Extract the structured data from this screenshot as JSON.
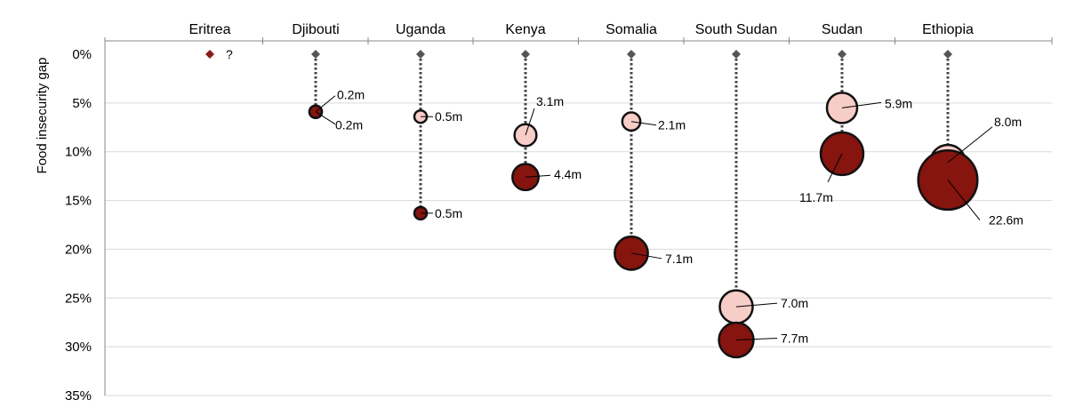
{
  "chart_data": {
    "type": "scatter",
    "ylabel": "Food insecurity gap",
    "ylim": [
      0,
      35
    ],
    "yticks": [
      "0%",
      "5%",
      "10%",
      "15%",
      "20%",
      "25%",
      "30%",
      "35%"
    ],
    "ytick_values": [
      0,
      5,
      10,
      15,
      20,
      25,
      30,
      35
    ],
    "grid": true,
    "colors": {
      "light_fill": "#f7cdc8",
      "dark_fill": "#86140f",
      "outline": "#111111",
      "diamond": "#555555",
      "eritrea_diamond": "#8b1a1a",
      "gridline": "#d9d9d9",
      "axis": "#888888"
    },
    "countries": [
      {
        "name": "Eritrea",
        "unknown": true,
        "unknown_label": "?",
        "points": []
      },
      {
        "name": "Djibouti",
        "points": [
          {
            "kind": "light",
            "gap": 5.9,
            "people": 0.2,
            "label": "0.2m"
          },
          {
            "kind": "dark",
            "gap": 5.9,
            "people": 0.2,
            "label": "0.2m"
          }
        ]
      },
      {
        "name": "Uganda",
        "points": [
          {
            "kind": "light",
            "gap": 6.4,
            "people": 0.5,
            "label": "0.5m"
          },
          {
            "kind": "dark",
            "gap": 16.3,
            "people": 0.5,
            "label": "0.5m"
          }
        ]
      },
      {
        "name": "Kenya",
        "points": [
          {
            "kind": "light",
            "gap": 8.3,
            "people": 3.1,
            "label": "3.1m"
          },
          {
            "kind": "dark",
            "gap": 12.6,
            "people": 4.4,
            "label": "4.4m"
          }
        ]
      },
      {
        "name": "Somalia",
        "points": [
          {
            "kind": "light",
            "gap": 6.9,
            "people": 2.1,
            "label": "2.1m"
          },
          {
            "kind": "dark",
            "gap": 20.4,
            "people": 7.1,
            "label": "7.1m"
          }
        ]
      },
      {
        "name": "South Sudan",
        "points": [
          {
            "kind": "light",
            "gap": 25.9,
            "people": 7.0,
            "label": "7.0m"
          },
          {
            "kind": "dark",
            "gap": 29.3,
            "people": 7.7,
            "label": "7.7m"
          }
        ]
      },
      {
        "name": "Sudan",
        "points": [
          {
            "kind": "light",
            "gap": 5.5,
            "people": 5.9,
            "label": "5.9m"
          },
          {
            "kind": "dark",
            "gap": 10.2,
            "people": 11.7,
            "label": "11.7m"
          }
        ]
      },
      {
        "name": "Ethiopia",
        "points": [
          {
            "kind": "light",
            "gap": 11.1,
            "people": 8.0,
            "label": "8.0m"
          },
          {
            "kind": "dark",
            "gap": 12.9,
            "people": 22.6,
            "label": "22.6m"
          }
        ]
      }
    ]
  }
}
